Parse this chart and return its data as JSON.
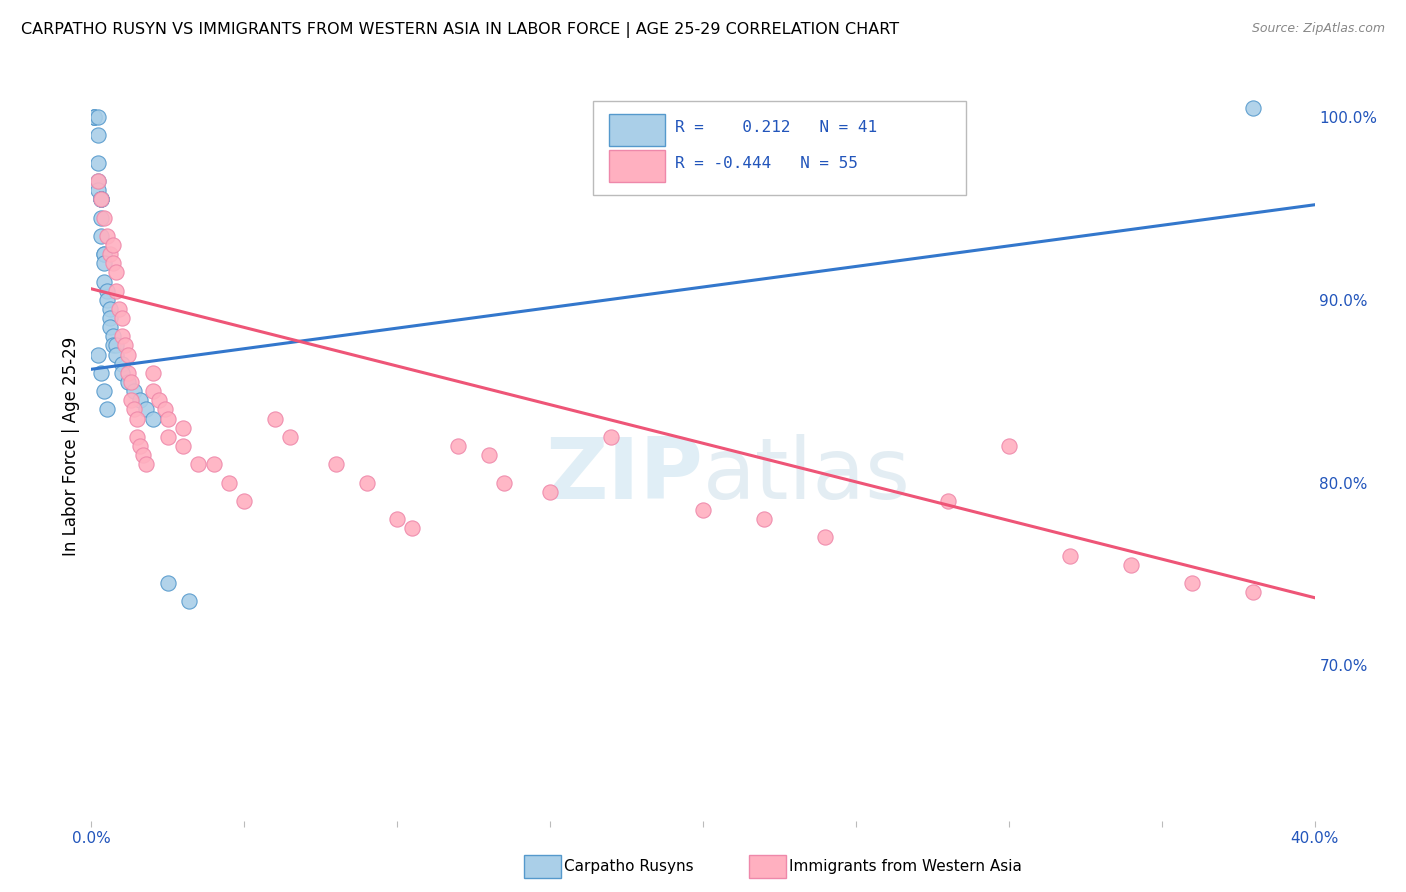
{
  "title": "CARPATHO RUSYN VS IMMIGRANTS FROM WESTERN ASIA IN LABOR FORCE | AGE 25-29 CORRELATION CHART",
  "source": "Source: ZipAtlas.com",
  "ylabel": "In Labor Force | Age 25-29",
  "xlim": [
    0.0,
    0.4
  ],
  "ylim": [
    0.615,
    1.025
  ],
  "ytick_right_labels": [
    "100.0%",
    "90.0%",
    "80.0%",
    "70.0%"
  ],
  "ytick_right_values": [
    1.0,
    0.9,
    0.8,
    0.7
  ],
  "blue_R": 0.212,
  "blue_N": 41,
  "pink_R": -0.444,
  "pink_N": 55,
  "blue_fill": "#aacfe8",
  "blue_edge": "#5599cc",
  "pink_fill": "#ffb0c0",
  "pink_edge": "#ee88aa",
  "blue_line_color": "#3377cc",
  "pink_line_color": "#ee5577",
  "watermark": "ZIPatlas",
  "blue_scatter_x": [
    0.001,
    0.001,
    0.001,
    0.002,
    0.002,
    0.002,
    0.002,
    0.002,
    0.003,
    0.003,
    0.003,
    0.003,
    0.003,
    0.003,
    0.004,
    0.004,
    0.004,
    0.004,
    0.005,
    0.005,
    0.006,
    0.006,
    0.006,
    0.007,
    0.007,
    0.008,
    0.008,
    0.01,
    0.01,
    0.012,
    0.014,
    0.016,
    0.018,
    0.02,
    0.025,
    0.032,
    0.002,
    0.003,
    0.004,
    0.005,
    0.38
  ],
  "blue_scatter_y": [
    1.0,
    1.0,
    1.0,
    1.0,
    0.99,
    0.975,
    0.965,
    0.96,
    0.955,
    0.955,
    0.955,
    0.955,
    0.945,
    0.935,
    0.925,
    0.925,
    0.92,
    0.91,
    0.905,
    0.9,
    0.895,
    0.89,
    0.885,
    0.88,
    0.875,
    0.875,
    0.87,
    0.865,
    0.86,
    0.855,
    0.85,
    0.845,
    0.84,
    0.835,
    0.745,
    0.735,
    0.87,
    0.86,
    0.85,
    0.84,
    1.005
  ],
  "pink_scatter_x": [
    0.002,
    0.003,
    0.004,
    0.005,
    0.006,
    0.007,
    0.007,
    0.008,
    0.008,
    0.009,
    0.01,
    0.01,
    0.011,
    0.012,
    0.012,
    0.013,
    0.013,
    0.014,
    0.015,
    0.015,
    0.016,
    0.017,
    0.018,
    0.02,
    0.02,
    0.022,
    0.024,
    0.025,
    0.025,
    0.03,
    0.03,
    0.035,
    0.04,
    0.045,
    0.05,
    0.06,
    0.065,
    0.08,
    0.09,
    0.1,
    0.105,
    0.12,
    0.13,
    0.135,
    0.15,
    0.17,
    0.2,
    0.22,
    0.24,
    0.28,
    0.3,
    0.32,
    0.34,
    0.36,
    0.38
  ],
  "pink_scatter_y": [
    0.965,
    0.955,
    0.945,
    0.935,
    0.925,
    0.93,
    0.92,
    0.915,
    0.905,
    0.895,
    0.89,
    0.88,
    0.875,
    0.87,
    0.86,
    0.855,
    0.845,
    0.84,
    0.835,
    0.825,
    0.82,
    0.815,
    0.81,
    0.86,
    0.85,
    0.845,
    0.84,
    0.835,
    0.825,
    0.83,
    0.82,
    0.81,
    0.81,
    0.8,
    0.79,
    0.835,
    0.825,
    0.81,
    0.8,
    0.78,
    0.775,
    0.82,
    0.815,
    0.8,
    0.795,
    0.825,
    0.785,
    0.78,
    0.77,
    0.79,
    0.82,
    0.76,
    0.755,
    0.745,
    0.74
  ],
  "blue_trend_x": [
    0.0,
    0.4
  ],
  "blue_trend_y": [
    0.862,
    0.952
  ],
  "pink_trend_x": [
    0.0,
    0.4
  ],
  "pink_trend_y": [
    0.906,
    0.737
  ]
}
